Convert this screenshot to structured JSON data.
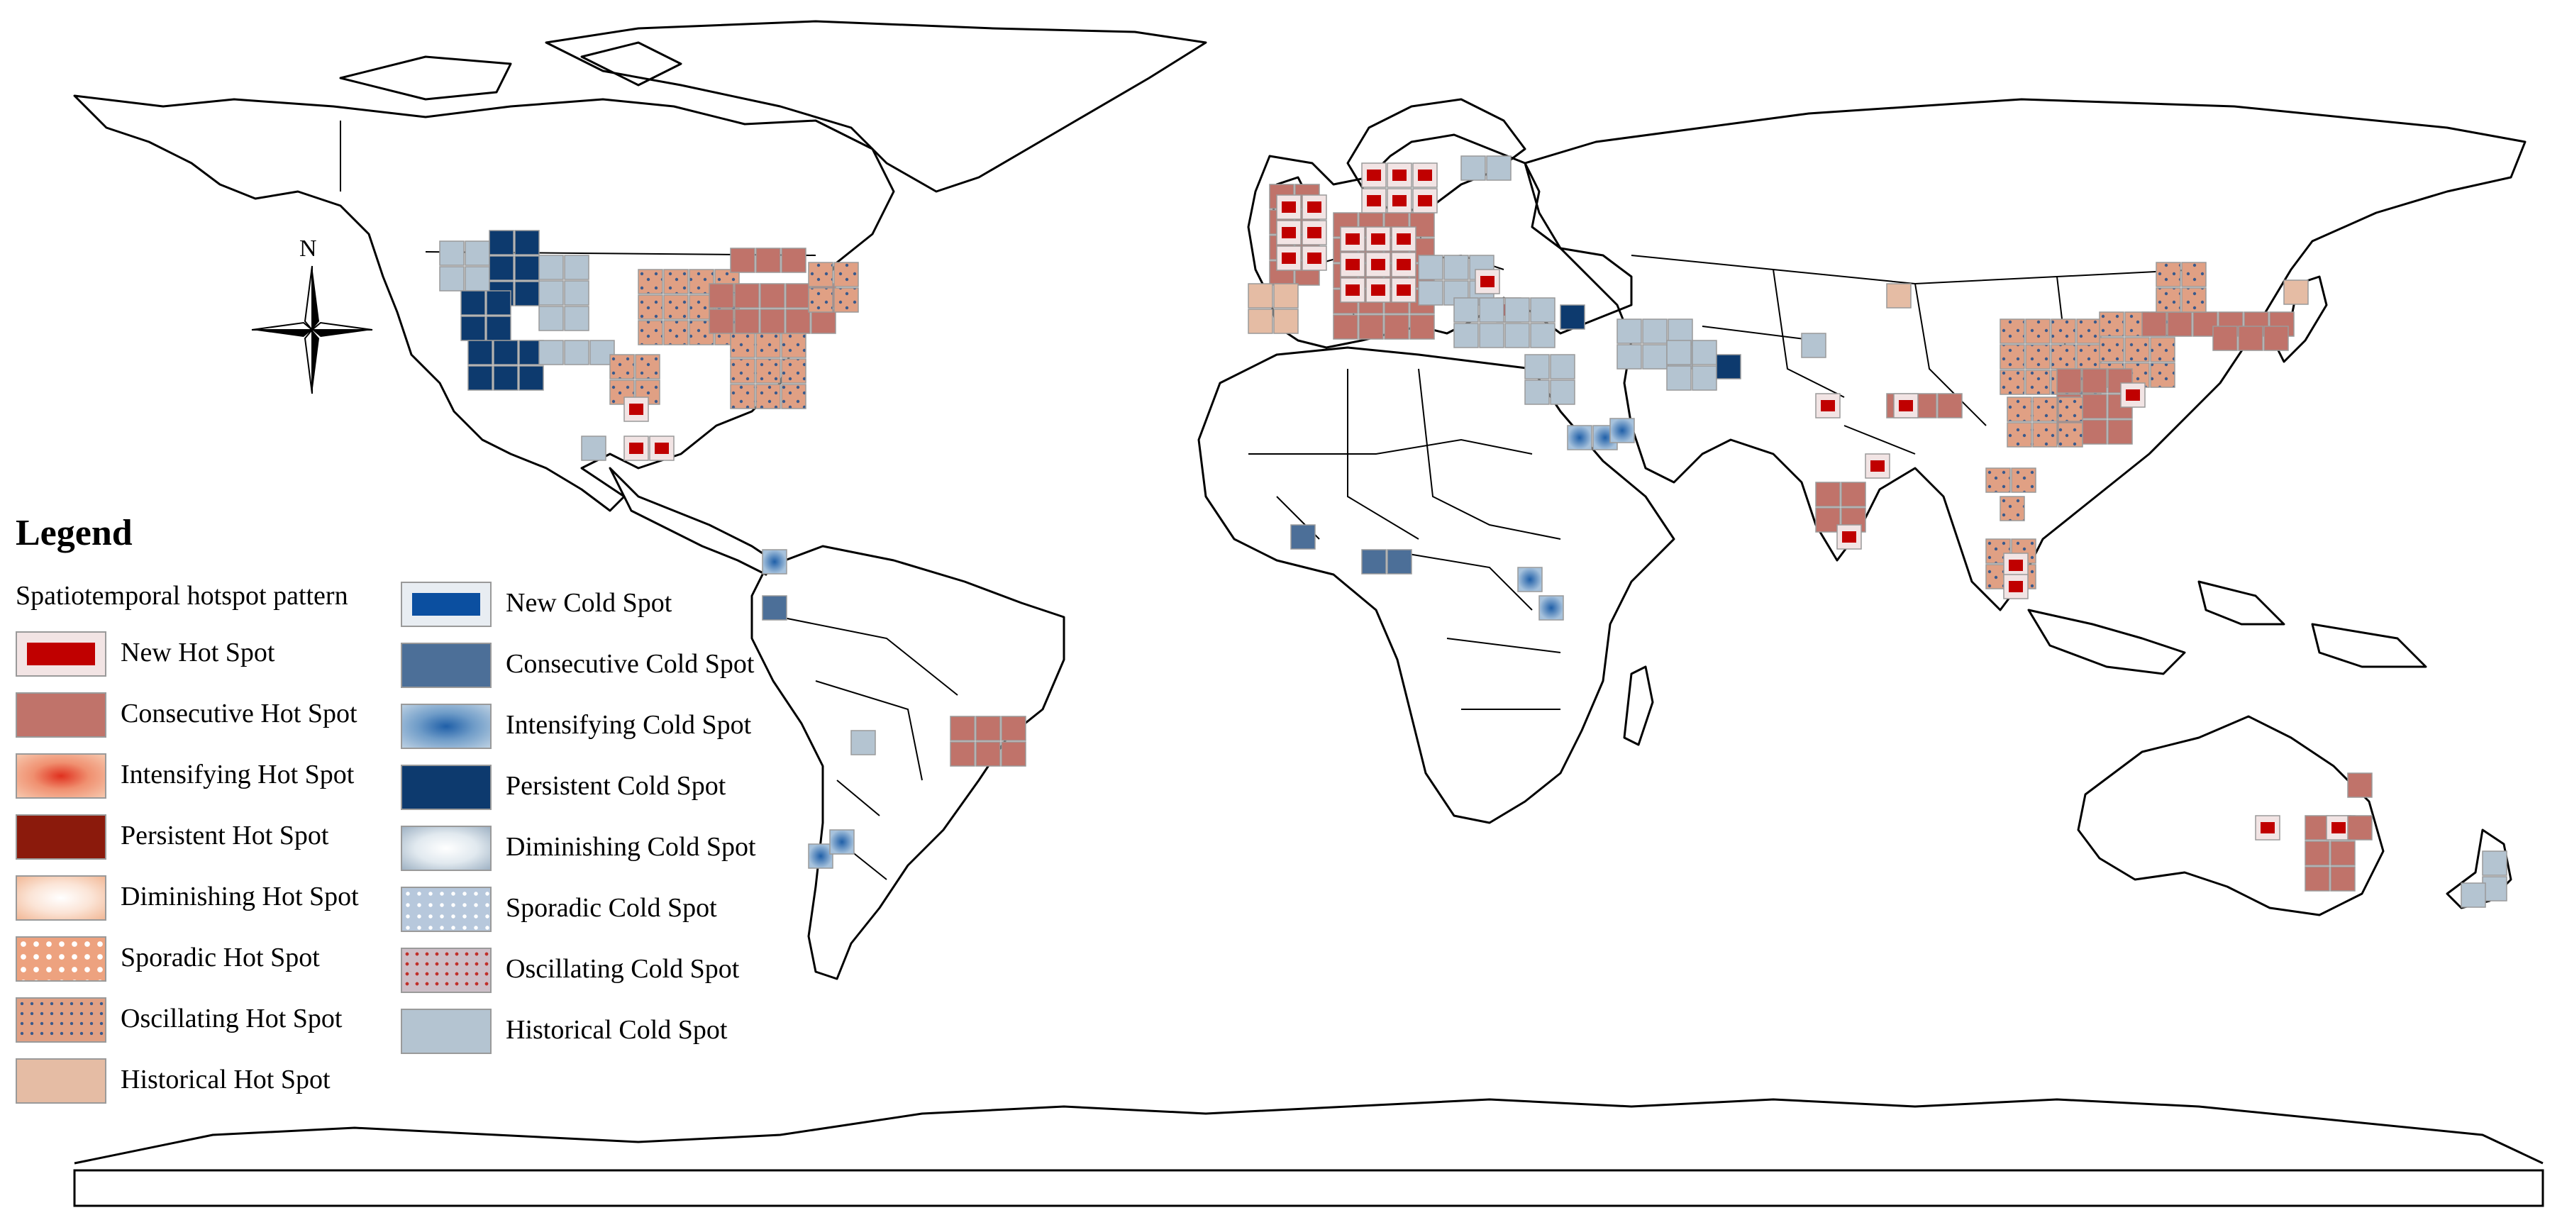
{
  "legend": {
    "title": "Legend",
    "subtitle": "Spatiotemporal hotspot pattern",
    "hot_items": [
      {
        "label": "New Hot Spot",
        "key": "new_hot"
      },
      {
        "label": "Consecutive Hot Spot",
        "key": "consecutive_hot"
      },
      {
        "label": "Intensifying Hot Spot",
        "key": "intensifying_hot"
      },
      {
        "label": "Persistent Hot Spot",
        "key": "persistent_hot"
      },
      {
        "label": "Diminishing Hot Spot",
        "key": "diminishing_hot"
      },
      {
        "label": "Sporadic Hot Spot",
        "key": "sporadic_hot"
      },
      {
        "label": "Oscillating Hot Spot",
        "key": "oscillating_hot"
      },
      {
        "label": "Historical Hot Spot",
        "key": "historical_hot"
      }
    ],
    "cold_items": [
      {
        "label": "New Cold Spot",
        "key": "new_cold"
      },
      {
        "label": "Consecutive Cold Spot",
        "key": "consecutive_cold"
      },
      {
        "label": "Intensifying Cold Spot",
        "key": "intensifying_cold"
      },
      {
        "label": "Persistent Cold Spot",
        "key": "persistent_cold"
      },
      {
        "label": "Diminishing Cold Spot",
        "key": "diminishing_cold"
      },
      {
        "label": "Sporadic Cold Spot",
        "key": "sporadic_cold"
      },
      {
        "label": "Oscillating Cold Spot",
        "key": "oscillating_cold"
      },
      {
        "label": "Historical Cold Spot",
        "key": "historical_cold"
      }
    ]
  },
  "north_arrow": {
    "label": "N"
  },
  "colors": {
    "new_hot": "#c00000",
    "consecutive_hot": "#c0736a",
    "intensifying_hot": "#e8603c",
    "persistent_hot": "#8b1a0c",
    "diminishing_hot": "#f7d9c6",
    "sporadic_hot": "#eda27f",
    "oscillating_hot": "#d9987c",
    "historical_hot": "#e5bca4",
    "new_cold": "#0b4fa0",
    "consecutive_cold": "#4c6f98",
    "intensifying_cold": "#2f6fb0",
    "persistent_cold": "#0d3a6e",
    "diminishing_cold": "#dfe8ef",
    "sporadic_cold": "#b7c8dc",
    "oscillating_cold": "#c9b6c0",
    "historical_cold": "#b4c4d1"
  },
  "hotspot_regions": [
    {
      "region": "western-north-america",
      "pattern": "persistent_cold"
    },
    {
      "region": "western-north-america",
      "pattern": "historical_cold"
    },
    {
      "region": "eastern-north-america",
      "pattern": "consecutive_hot"
    },
    {
      "region": "eastern-north-america",
      "pattern": "oscillating_hot"
    },
    {
      "region": "mexico",
      "pattern": "new_hot"
    },
    {
      "region": "western-europe",
      "pattern": "new_hot"
    },
    {
      "region": "western-europe",
      "pattern": "consecutive_hot"
    },
    {
      "region": "middle-east",
      "pattern": "historical_cold"
    },
    {
      "region": "east-asia",
      "pattern": "consecutive_hot"
    },
    {
      "region": "east-asia",
      "pattern": "oscillating_hot"
    },
    {
      "region": "south-asia",
      "pattern": "new_hot"
    },
    {
      "region": "brazil",
      "pattern": "consecutive_hot"
    },
    {
      "region": "australia",
      "pattern": "consecutive_hot"
    },
    {
      "region": "new-zealand",
      "pattern": "historical_cold"
    }
  ]
}
